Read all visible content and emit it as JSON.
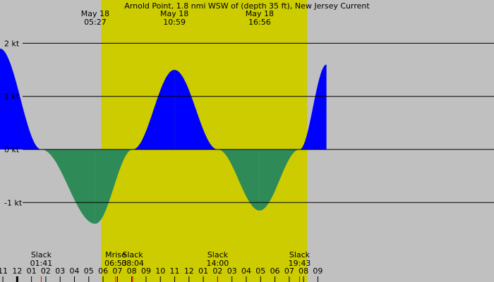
{
  "chart_data": {
    "type": "area",
    "title": "Arnold Point, 1.8 nmi WSW of (depth 35 ft), New Jersey Current",
    "colors": {
      "background": "#c0c0c0",
      "daylight": "#cccc00",
      "flood": "#0000ff",
      "ebb": "#2e8b57",
      "gridline": "#000000",
      "event_tick": "#ff0000"
    },
    "ylim": [
      -2.0,
      2.0
    ],
    "y_ticks": [
      {
        "value": 2,
        "label": "2 kt"
      },
      {
        "value": 1,
        "label": "1 kt"
      },
      {
        "value": 0,
        "label": "0 kt"
      },
      {
        "value": -1,
        "label": "-1 kt"
      }
    ],
    "xlim_hours": [
      -1.2,
      33.3
    ],
    "daylight_hours": [
      5.88,
      20.25
    ],
    "max_events": [
      {
        "date": "May 18",
        "time": "05:27",
        "hour": 5.45,
        "value": -1.4
      },
      {
        "date": "May 18",
        "time": "10:59",
        "hour": 10.98,
        "value": 1.5
      },
      {
        "date": "May 18",
        "time": "16:56",
        "hour": 16.93,
        "value": -1.15
      }
    ],
    "bottom_events": [
      {
        "label": "Slack",
        "time": "01:41",
        "hour": 1.68
      },
      {
        "label": "Mrise",
        "time": "06:53",
        "hour": 6.88
      },
      {
        "label": "Slack",
        "time": "08:04",
        "hour": 8.07
      },
      {
        "label": "Slack",
        "time": "14:00",
        "hour": 14.0
      },
      {
        "label": "Slack",
        "time": "19:43",
        "hour": 19.72
      }
    ],
    "current_points": [
      {
        "hour": -1.2,
        "value": 1.9
      },
      {
        "hour": 1.68,
        "value": 0
      },
      {
        "hour": 5.45,
        "value": -1.4
      },
      {
        "hour": 8.07,
        "value": 0
      },
      {
        "hour": 10.98,
        "value": 1.5
      },
      {
        "hour": 14.0,
        "value": 0
      },
      {
        "hour": 16.93,
        "value": -1.15
      },
      {
        "hour": 19.72,
        "value": 0
      },
      {
        "hour": 21.6,
        "value": 1.6
      }
    ],
    "x_ticks": [
      {
        "hour": -1,
        "label": "11"
      },
      {
        "hour": 0,
        "label": "12"
      },
      {
        "hour": 1,
        "label": "01"
      },
      {
        "hour": 2,
        "label": "02"
      },
      {
        "hour": 3,
        "label": "03"
      },
      {
        "hour": 4,
        "label": "04"
      },
      {
        "hour": 5,
        "label": "05"
      },
      {
        "hour": 6,
        "label": "06"
      },
      {
        "hour": 7,
        "label": "07"
      },
      {
        "hour": 8,
        "label": "08"
      },
      {
        "hour": 9,
        "label": "09"
      },
      {
        "hour": 10,
        "label": "10"
      },
      {
        "hour": 11,
        "label": "11"
      },
      {
        "hour": 12,
        "label": "12"
      },
      {
        "hour": 13,
        "label": "01"
      },
      {
        "hour": 14,
        "label": "02"
      },
      {
        "hour": 15,
        "label": "03"
      },
      {
        "hour": 16,
        "label": "04"
      },
      {
        "hour": 17,
        "label": "05"
      },
      {
        "hour": 18,
        "label": "06"
      },
      {
        "hour": 19,
        "label": "07"
      },
      {
        "hour": 20,
        "label": "08"
      },
      {
        "hour": 21,
        "label": "09"
      }
    ]
  }
}
